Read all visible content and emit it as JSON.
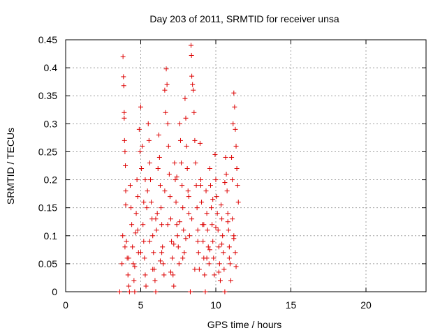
{
  "colors": {
    "series": "#dd0000",
    "grid": "#a0a0a0",
    "frame": "#000000"
  },
  "chart_data": {
    "type": "scatter",
    "title": "Day 203 of 2011, SRMTID for receiver unsa",
    "xlabel": "GPS time / hours",
    "ylabel": "SRMTID / TECUs",
    "xlim": [
      0,
      24
    ],
    "ylim": [
      0,
      0.45
    ],
    "xticks": [
      0,
      5,
      10,
      15,
      20
    ],
    "xtick_labels": [
      "0",
      "5",
      "10",
      "15",
      "20"
    ],
    "yticks": [
      0,
      0.05,
      0.1,
      0.15,
      0.2,
      0.25,
      0.3,
      0.35,
      0.4,
      0.45
    ],
    "ytick_labels": [
      "0",
      "0.05",
      "0.1",
      "0.15",
      "0.2",
      "0.25",
      "0.3",
      "0.35",
      "0.4",
      "0.45"
    ],
    "grid": true,
    "legend": "none",
    "series": [
      {
        "name": "SRMTID",
        "marker": "+",
        "points": [
          [
            3.6,
            0.0
          ],
          [
            3.75,
            0.05
          ],
          [
            3.8,
            0.1
          ],
          [
            3.82,
            0.42
          ],
          [
            3.85,
            0.384
          ],
          [
            3.87,
            0.368
          ],
          [
            3.9,
            0.32
          ],
          [
            3.9,
            0.31
          ],
          [
            3.92,
            0.27
          ],
          [
            3.95,
            0.25
          ],
          [
            3.98,
            0.225
          ],
          [
            4.0,
            0.18
          ],
          [
            4.0,
            0.155
          ],
          [
            4.05,
            0.09
          ],
          [
            4.1,
            0.06
          ],
          [
            4.15,
            0.03
          ],
          [
            4.2,
            0.01
          ],
          [
            4.25,
            0.0
          ],
          [
            4.3,
            0.19
          ],
          [
            4.35,
            0.15
          ],
          [
            4.4,
            0.12
          ],
          [
            4.45,
            0.08
          ],
          [
            4.5,
            0.05
          ],
          [
            4.55,
            0.02
          ],
          [
            4.6,
            0.0
          ],
          [
            4.65,
            0.105
          ],
          [
            4.7,
            0.14
          ],
          [
            4.75,
            0.2
          ],
          [
            4.8,
            0.17
          ],
          [
            4.85,
            0.07
          ],
          [
            4.9,
            0.29
          ],
          [
            4.95,
            0.25
          ],
          [
            5.0,
            0.33
          ],
          [
            5.05,
            0.22
          ],
          [
            5.1,
            0.26
          ],
          [
            5.15,
            0.12
          ],
          [
            5.2,
            0.09
          ],
          [
            5.25,
            0.06
          ],
          [
            5.3,
            0.03
          ],
          [
            5.35,
            0.01
          ],
          [
            5.4,
            0.15
          ],
          [
            5.45,
            0.18
          ],
          [
            5.5,
            0.3
          ],
          [
            5.55,
            0.27
          ],
          [
            5.6,
            0.23
          ],
          [
            5.65,
            0.2
          ],
          [
            5.7,
            0.16
          ],
          [
            5.75,
            0.13
          ],
          [
            5.8,
            0.1
          ],
          [
            5.85,
            0.07
          ],
          [
            5.9,
            0.04
          ],
          [
            5.95,
            0.02
          ],
          [
            6.0,
            0.0
          ],
          [
            6.05,
            0.11
          ],
          [
            6.1,
            0.14
          ],
          [
            6.15,
            0.22
          ],
          [
            6.2,
            0.28
          ],
          [
            6.25,
            0.24
          ],
          [
            6.3,
            0.19
          ],
          [
            6.35,
            0.15
          ],
          [
            6.4,
            0.12
          ],
          [
            6.45,
            0.08
          ],
          [
            6.5,
            0.05
          ],
          [
            6.55,
            0.03
          ],
          [
            6.6,
            0.36
          ],
          [
            6.65,
            0.32
          ],
          [
            6.7,
            0.398
          ],
          [
            6.75,
            0.37
          ],
          [
            6.8,
            0.3
          ],
          [
            6.85,
            0.26
          ],
          [
            6.9,
            0.21
          ],
          [
            6.95,
            0.17
          ],
          [
            7.0,
            0.13
          ],
          [
            7.05,
            0.09
          ],
          [
            7.1,
            0.06
          ],
          [
            7.15,
            0.03
          ],
          [
            7.2,
            0.01
          ],
          [
            7.25,
            0.23
          ],
          [
            7.3,
            0.2
          ],
          [
            7.35,
            0.16
          ],
          [
            7.4,
            0.12
          ],
          [
            7.45,
            0.1
          ],
          [
            7.5,
            0.08
          ],
          [
            7.55,
            0.05
          ],
          [
            7.6,
            0.3
          ],
          [
            7.65,
            0.27
          ],
          [
            7.7,
            0.23
          ],
          [
            7.75,
            0.19
          ],
          [
            7.8,
            0.15
          ],
          [
            7.85,
            0.11
          ],
          [
            7.9,
            0.07
          ],
          [
            7.95,
            0.345
          ],
          [
            8.0,
            0.31
          ],
          [
            8.05,
            0.26
          ],
          [
            8.1,
            0.22
          ],
          [
            8.15,
            0.18
          ],
          [
            8.2,
            0.14
          ],
          [
            8.25,
            0.1
          ],
          [
            8.3,
            0.0
          ],
          [
            8.35,
            0.44
          ],
          [
            8.38,
            0.422
          ],
          [
            8.4,
            0.385
          ],
          [
            8.45,
            0.37
          ],
          [
            8.5,
            0.36
          ],
          [
            8.55,
            0.32
          ],
          [
            8.6,
            0.27
          ],
          [
            8.65,
            0.23
          ],
          [
            8.7,
            0.19
          ],
          [
            8.75,
            0.15
          ],
          [
            8.8,
            0.11
          ],
          [
            8.85,
            0.07
          ],
          [
            8.9,
            0.04
          ],
          [
            8.95,
            0.265
          ],
          [
            9.0,
            0.2
          ],
          [
            9.05,
            0.16
          ],
          [
            9.1,
            0.12
          ],
          [
            9.15,
            0.09
          ],
          [
            9.2,
            0.06
          ],
          [
            9.25,
            0.03
          ],
          [
            9.3,
            0.0
          ],
          [
            9.35,
            0.18
          ],
          [
            9.4,
            0.14
          ],
          [
            9.45,
            0.11
          ],
          [
            9.5,
            0.08
          ],
          [
            9.55,
            0.05
          ],
          [
            9.6,
            0.22
          ],
          [
            9.65,
            0.19
          ],
          [
            9.7,
            0.15
          ],
          [
            9.75,
            0.12
          ],
          [
            9.8,
            0.09
          ],
          [
            9.85,
            0.06
          ],
          [
            9.9,
            0.03
          ],
          [
            9.95,
            0.245
          ],
          [
            10.0,
            0.2
          ],
          [
            10.05,
            0.17
          ],
          [
            10.1,
            0.14
          ],
          [
            10.15,
            0.11
          ],
          [
            10.2,
            0.08
          ],
          [
            10.25,
            0.05
          ],
          [
            10.3,
            0.02
          ],
          [
            10.35,
            0.155
          ],
          [
            10.4,
            0.13
          ],
          [
            10.45,
            0.1
          ],
          [
            10.5,
            0.07
          ],
          [
            10.55,
            0.04
          ],
          [
            10.6,
            0.0
          ],
          [
            10.65,
            0.24
          ],
          [
            10.7,
            0.21
          ],
          [
            10.75,
            0.18
          ],
          [
            10.8,
            0.14
          ],
          [
            10.85,
            0.11
          ],
          [
            10.9,
            0.08
          ],
          [
            10.95,
            0.05
          ],
          [
            11.0,
            0.02
          ],
          [
            11.05,
            0.24
          ],
          [
            11.1,
            0.2
          ],
          [
            11.15,
            0.3
          ],
          [
            11.2,
            0.355
          ],
          [
            11.25,
            0.33
          ],
          [
            11.3,
            0.29
          ],
          [
            11.35,
            0.26
          ],
          [
            11.4,
            0.22
          ],
          [
            11.45,
            0.19
          ],
          [
            11.5,
            0.16
          ],
          [
            11.1,
            0.13
          ],
          [
            11.2,
            0.1
          ],
          [
            11.3,
            0.07
          ],
          [
            11.35,
            0.045
          ],
          [
            4.2,
            0.06
          ],
          [
            4.8,
            0.11
          ],
          [
            5.2,
            0.16
          ],
          [
            5.6,
            0.09
          ],
          [
            6.0,
            0.13
          ],
          [
            6.4,
            0.07
          ],
          [
            6.8,
            0.12
          ],
          [
            7.2,
            0.085
          ],
          [
            7.6,
            0.125
          ],
          [
            8.0,
            0.095
          ],
          [
            8.4,
            0.13
          ],
          [
            8.8,
            0.09
          ],
          [
            9.2,
            0.12
          ],
          [
            9.6,
            0.075
          ],
          [
            10.0,
            0.115
          ],
          [
            10.4,
            0.085
          ],
          [
            10.8,
            0.125
          ],
          [
            11.2,
            0.095
          ],
          [
            3.95,
            0.08
          ],
          [
            4.6,
            0.045
          ],
          [
            5.0,
            0.07
          ],
          [
            5.8,
            0.04
          ],
          [
            6.3,
            0.055
          ],
          [
            7.0,
            0.035
          ],
          [
            7.8,
            0.06
          ],
          [
            8.6,
            0.04
          ],
          [
            9.4,
            0.06
          ],
          [
            10.2,
            0.035
          ],
          [
            10.9,
            0.06
          ],
          [
            5.3,
            0.2
          ],
          [
            6.6,
            0.18
          ],
          [
            7.4,
            0.205
          ],
          [
            8.2,
            0.17
          ],
          [
            9.0,
            0.19
          ],
          [
            9.8,
            0.165
          ],
          [
            10.6,
            0.195
          ]
        ]
      }
    ]
  }
}
